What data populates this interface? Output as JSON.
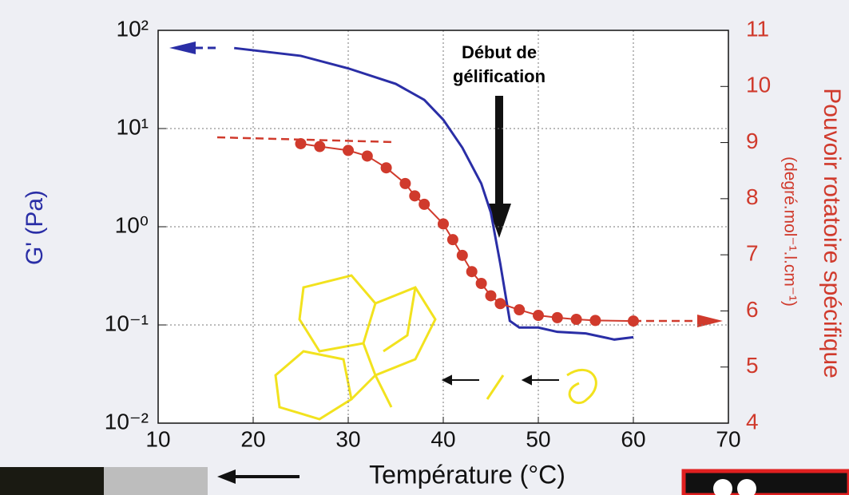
{
  "chart_data": {
    "type": "line",
    "xlabel": "Température (°C)",
    "ylabel": "G' (Pa)",
    "y2label": "Pouvoir rotatoire spécifique",
    "y2sublabel": "(degré.mol⁻¹.l.cm⁻¹)",
    "annotation": [
      "Début de",
      "gélification"
    ],
    "xlim": [
      10,
      70
    ],
    "xticks": [
      10,
      20,
      30,
      40,
      50,
      60,
      70
    ],
    "yscale": "log",
    "ylim": [
      0.01,
      100
    ],
    "yticks": [
      {
        "value": 0.01,
        "label": "10⁻²"
      },
      {
        "value": 0.1,
        "label": "10⁻¹"
      },
      {
        "value": 1,
        "label": "10⁰"
      },
      {
        "value": 10,
        "label": "10¹"
      },
      {
        "value": 100,
        "label": "10²"
      }
    ],
    "y2lim": [
      4,
      11
    ],
    "y2ticks": [
      4,
      5,
      6,
      7,
      8,
      9,
      10,
      11
    ],
    "grid": true,
    "series": [
      {
        "color": "#2a2ea6",
        "x": [
          18,
          25,
          30,
          35,
          38,
          40,
          42,
          44,
          45,
          46,
          47,
          48,
          50,
          52,
          55,
          58,
          60
        ],
        "values": [
          66,
          55,
          41,
          28.5,
          19.6,
          12.3,
          6.4,
          2.75,
          1.4,
          0.42,
          0.11,
          0.094,
          0.094,
          0.085,
          0.082,
          0.071,
          0.075
        ]
      },
      {
        "color": "#d03a2c",
        "axis": "y2",
        "marker": true,
        "x": [
          25,
          27,
          30,
          32,
          34,
          36,
          37,
          38,
          40,
          41,
          42,
          43,
          44,
          45,
          46,
          48,
          50,
          52,
          54,
          56,
          60
        ],
        "values": [
          8.98,
          8.93,
          8.86,
          8.76,
          8.55,
          8.27,
          8.05,
          7.9,
          7.55,
          7.27,
          6.99,
          6.7,
          6.49,
          6.27,
          6.13,
          6.02,
          5.92,
          5.88,
          5.85,
          5.83,
          5.82
        ]
      }
    ]
  }
}
